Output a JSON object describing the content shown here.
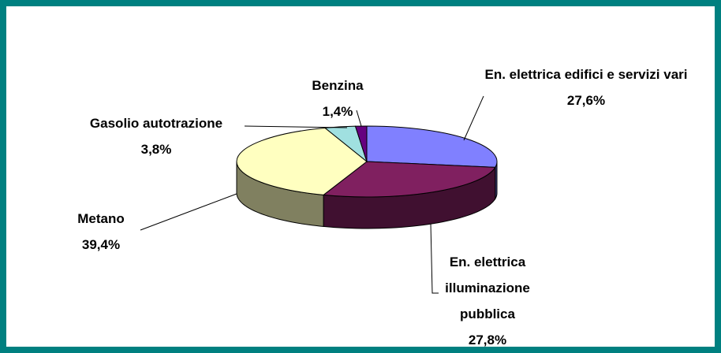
{
  "chart_data": {
    "type": "pie3d",
    "categories": [
      "En. elettrica edifici e servizi vari",
      "En. elettrica illuminazione pubblica",
      "Metano",
      "Gasolio autotrazione",
      "Benzina"
    ],
    "values": [
      27.6,
      27.8,
      39.4,
      3.8,
      1.4
    ],
    "value_labels": [
      "27,6%",
      "27,8%",
      "39,4%",
      "3,8%",
      "1,4%"
    ],
    "colors": [
      "#8080ff",
      "#802060",
      "#ffffc0",
      "#a0e0e0",
      "#660080"
    ]
  }
}
